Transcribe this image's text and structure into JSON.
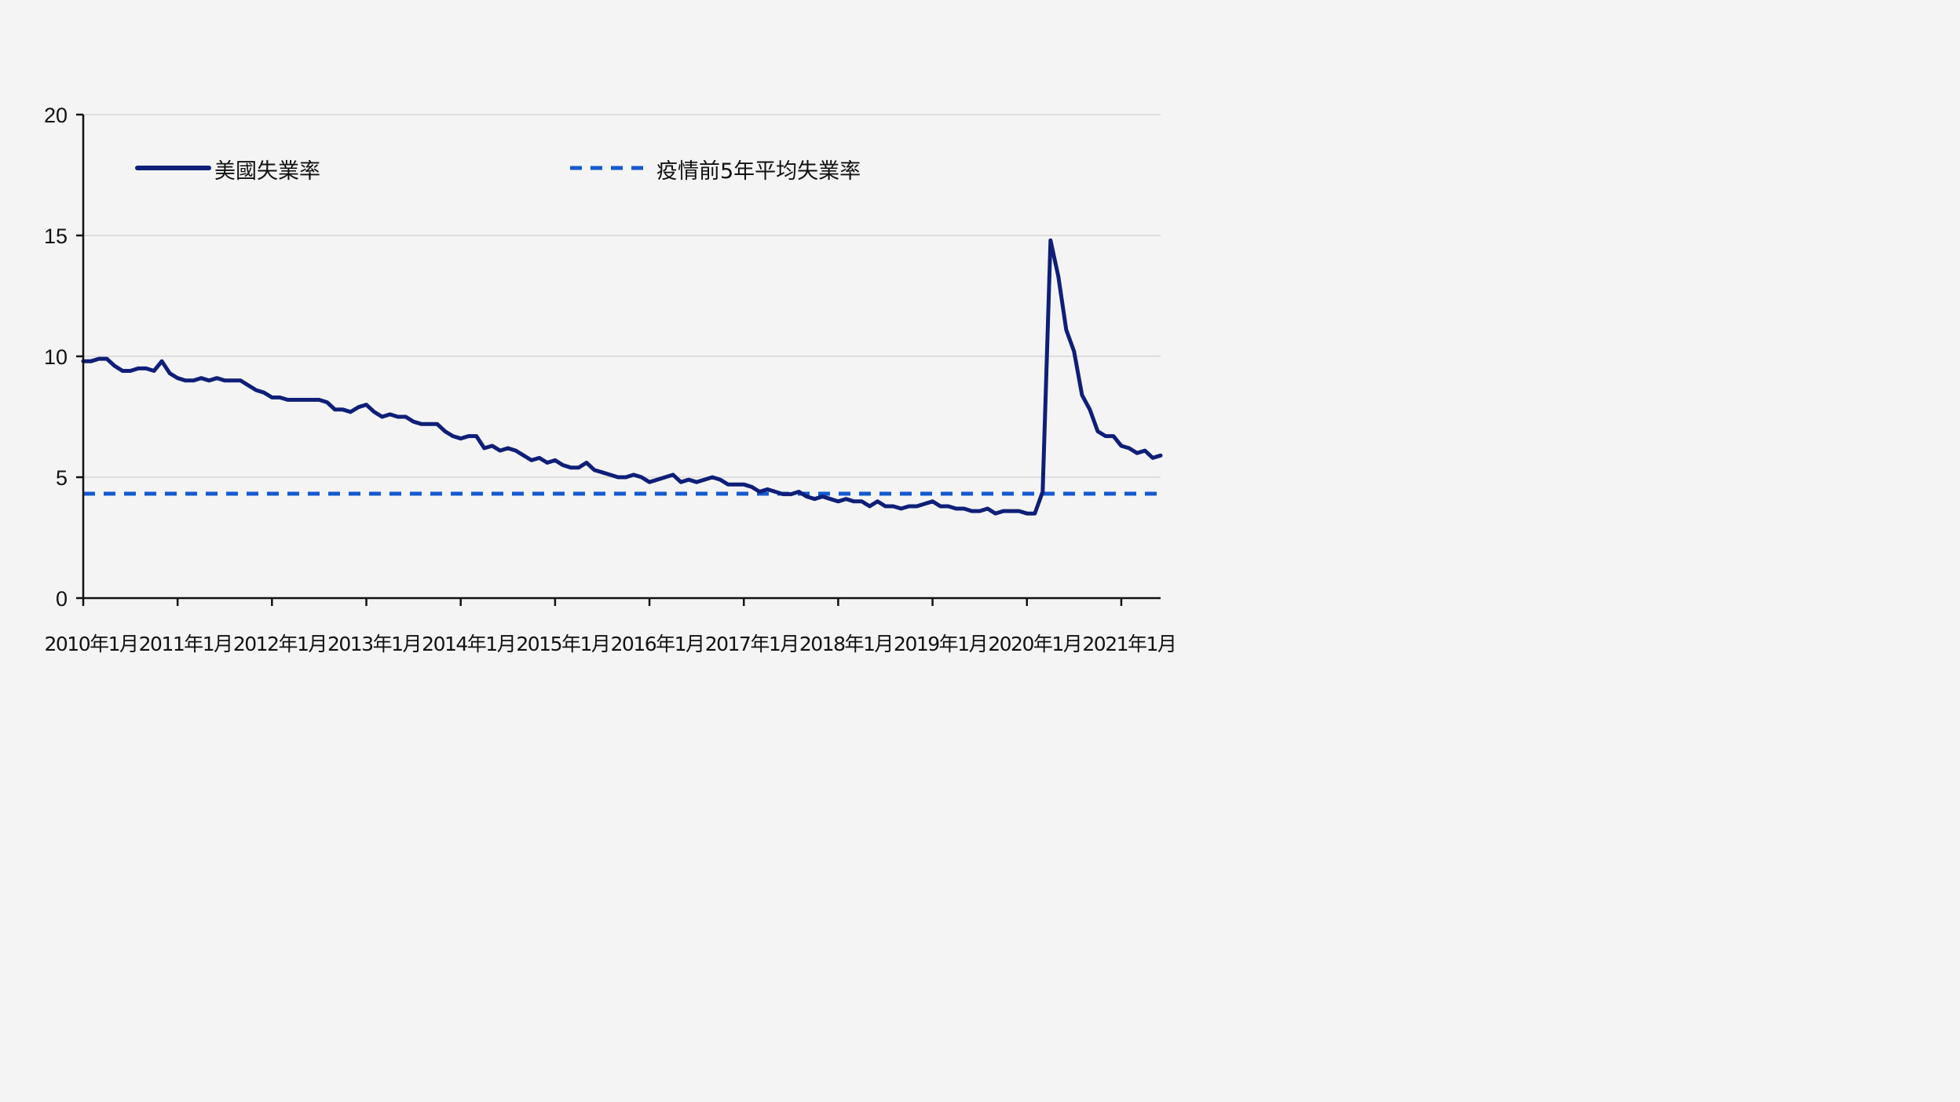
{
  "chart_data": {
    "type": "line",
    "title": "",
    "xlabel": "",
    "ylabel": "",
    "ylim": [
      0,
      20
    ],
    "yticks": [
      0,
      5,
      10,
      15,
      20
    ],
    "xlim": [
      "2010-01",
      "2021-06"
    ],
    "xtick_labels": [
      "2010年1月",
      "2011年1月",
      "2012年1月",
      "2013年1月",
      "2014年1月",
      "2015年1月",
      "2016年1月",
      "2017年1月",
      "2018年1月",
      "2019年1月",
      "2020年1月",
      "2021年1月"
    ],
    "grid": "horizontal",
    "legend_position": "top",
    "series": [
      {
        "name": "美國失業率",
        "color": "#0f1f78",
        "style": "solid",
        "start": "2010-01",
        "frequency": "monthly",
        "values": [
          9.8,
          9.8,
          9.9,
          9.9,
          9.6,
          9.4,
          9.4,
          9.5,
          9.5,
          9.4,
          9.8,
          9.3,
          9.1,
          9.0,
          9.0,
          9.1,
          9.0,
          9.1,
          9.0,
          9.0,
          9.0,
          8.8,
          8.6,
          8.5,
          8.3,
          8.3,
          8.2,
          8.2,
          8.2,
          8.2,
          8.2,
          8.1,
          7.8,
          7.8,
          7.7,
          7.9,
          8.0,
          7.7,
          7.5,
          7.6,
          7.5,
          7.5,
          7.3,
          7.2,
          7.2,
          7.2,
          6.9,
          6.7,
          6.6,
          6.7,
          6.7,
          6.2,
          6.3,
          6.1,
          6.2,
          6.1,
          5.9,
          5.7,
          5.8,
          5.6,
          5.7,
          5.5,
          5.4,
          5.4,
          5.6,
          5.3,
          5.2,
          5.1,
          5.0,
          5.0,
          5.1,
          5.0,
          4.8,
          4.9,
          5.0,
          5.1,
          4.8,
          4.9,
          4.8,
          4.9,
          5.0,
          4.9,
          4.7,
          4.7,
          4.7,
          4.6,
          4.4,
          4.5,
          4.4,
          4.3,
          4.3,
          4.4,
          4.2,
          4.1,
          4.2,
          4.1,
          4.0,
          4.1,
          4.0,
          4.0,
          3.8,
          4.0,
          3.8,
          3.8,
          3.7,
          3.8,
          3.8,
          3.9,
          4.0,
          3.8,
          3.8,
          3.7,
          3.7,
          3.6,
          3.6,
          3.7,
          3.5,
          3.6,
          3.6,
          3.6,
          3.5,
          3.5,
          4.4,
          14.8,
          13.3,
          11.1,
          10.2,
          8.4,
          7.8,
          6.9,
          6.7,
          6.7,
          6.3,
          6.2,
          6.0,
          6.1,
          5.8,
          5.9
        ]
      },
      {
        "name": "疫情前5年平均失業率",
        "color": "#1459d0",
        "style": "dashed",
        "constant": 4.32
      }
    ]
  }
}
